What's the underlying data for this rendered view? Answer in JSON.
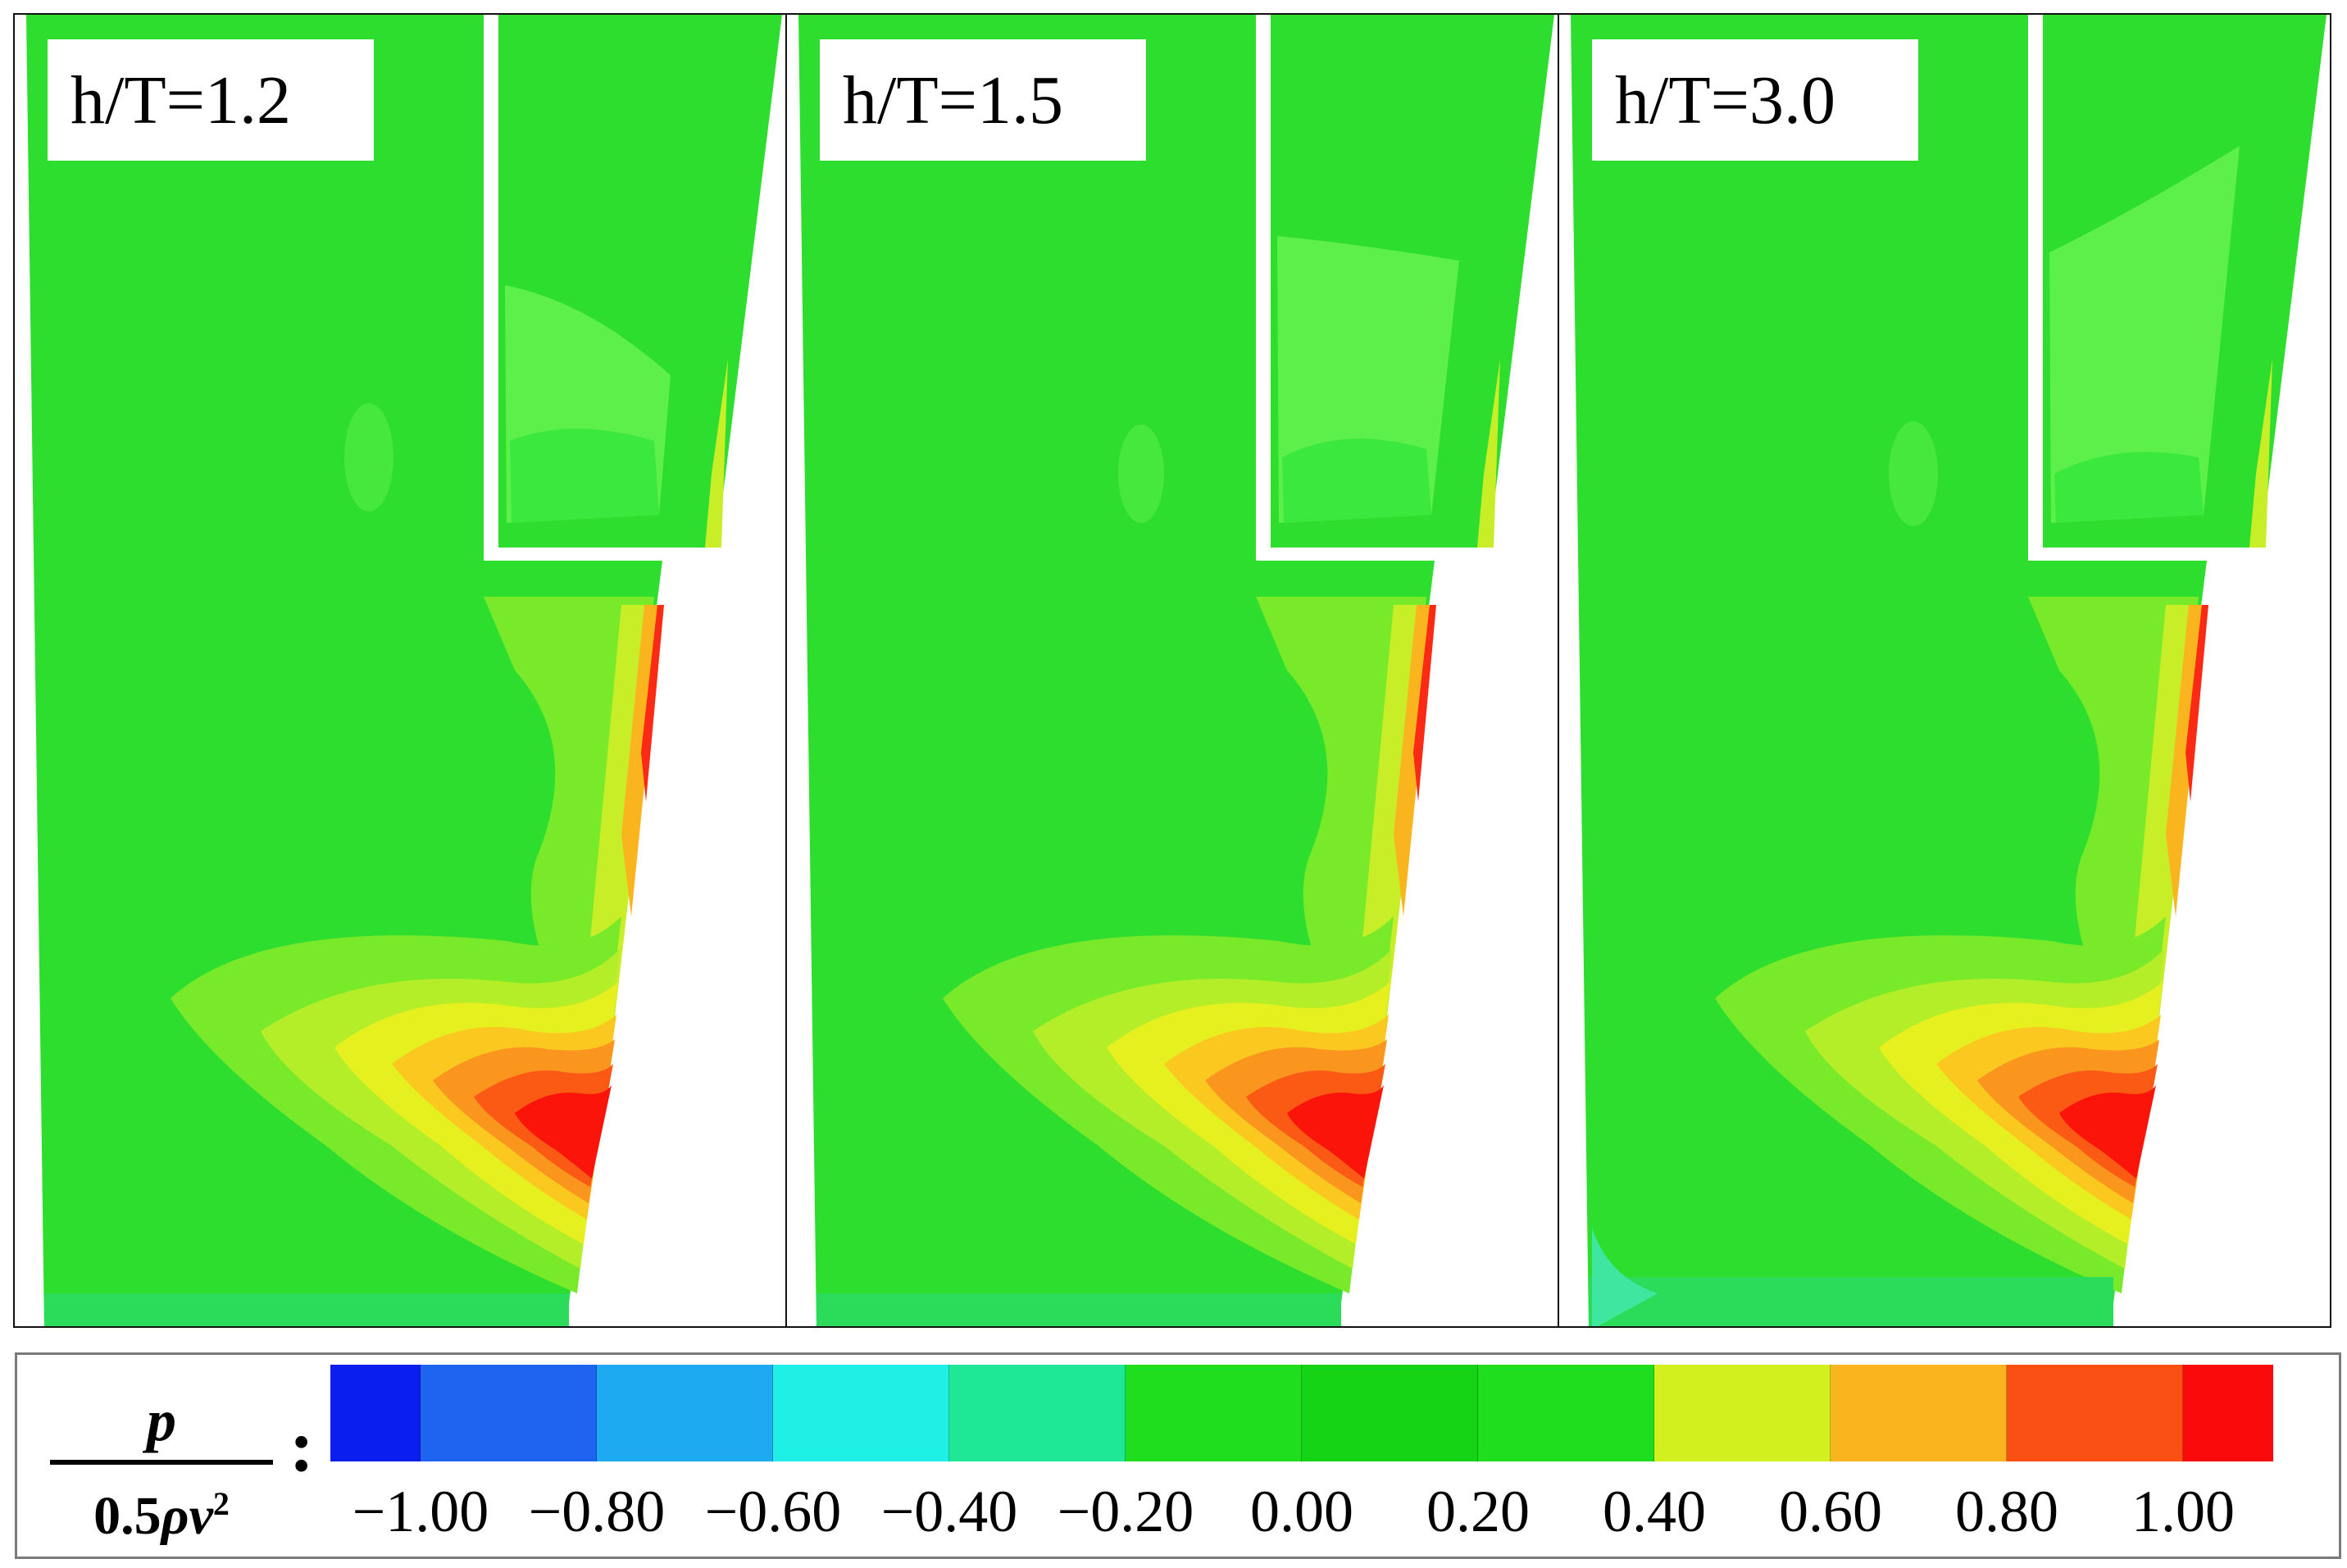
{
  "panels": [
    {
      "label": "h/T=1.2"
    },
    {
      "label": "h/T=1.5"
    },
    {
      "label": "h/T=3.0"
    }
  ],
  "legend": {
    "numerator": "p",
    "denominator_prefix": "0.5",
    "denominator_rho": "ρ",
    "denominator_v": "v",
    "denominator_exp": "2",
    "separator": ":",
    "colors": [
      "#0a1ef0",
      "#1e64f0",
      "#1eaaf0",
      "#1ef0e6",
      "#1ee896",
      "#1ede1e",
      "#14d214",
      "#1ede1e",
      "#d2f01e",
      "#fab41e",
      "#fa5014",
      "#fa0a0a"
    ],
    "ticks": [
      "−1.00",
      "−0.80",
      "−0.60",
      "−0.40",
      "−0.20",
      "0.00",
      "0.20",
      "0.40",
      "0.60",
      "0.80",
      "1.00"
    ]
  }
}
